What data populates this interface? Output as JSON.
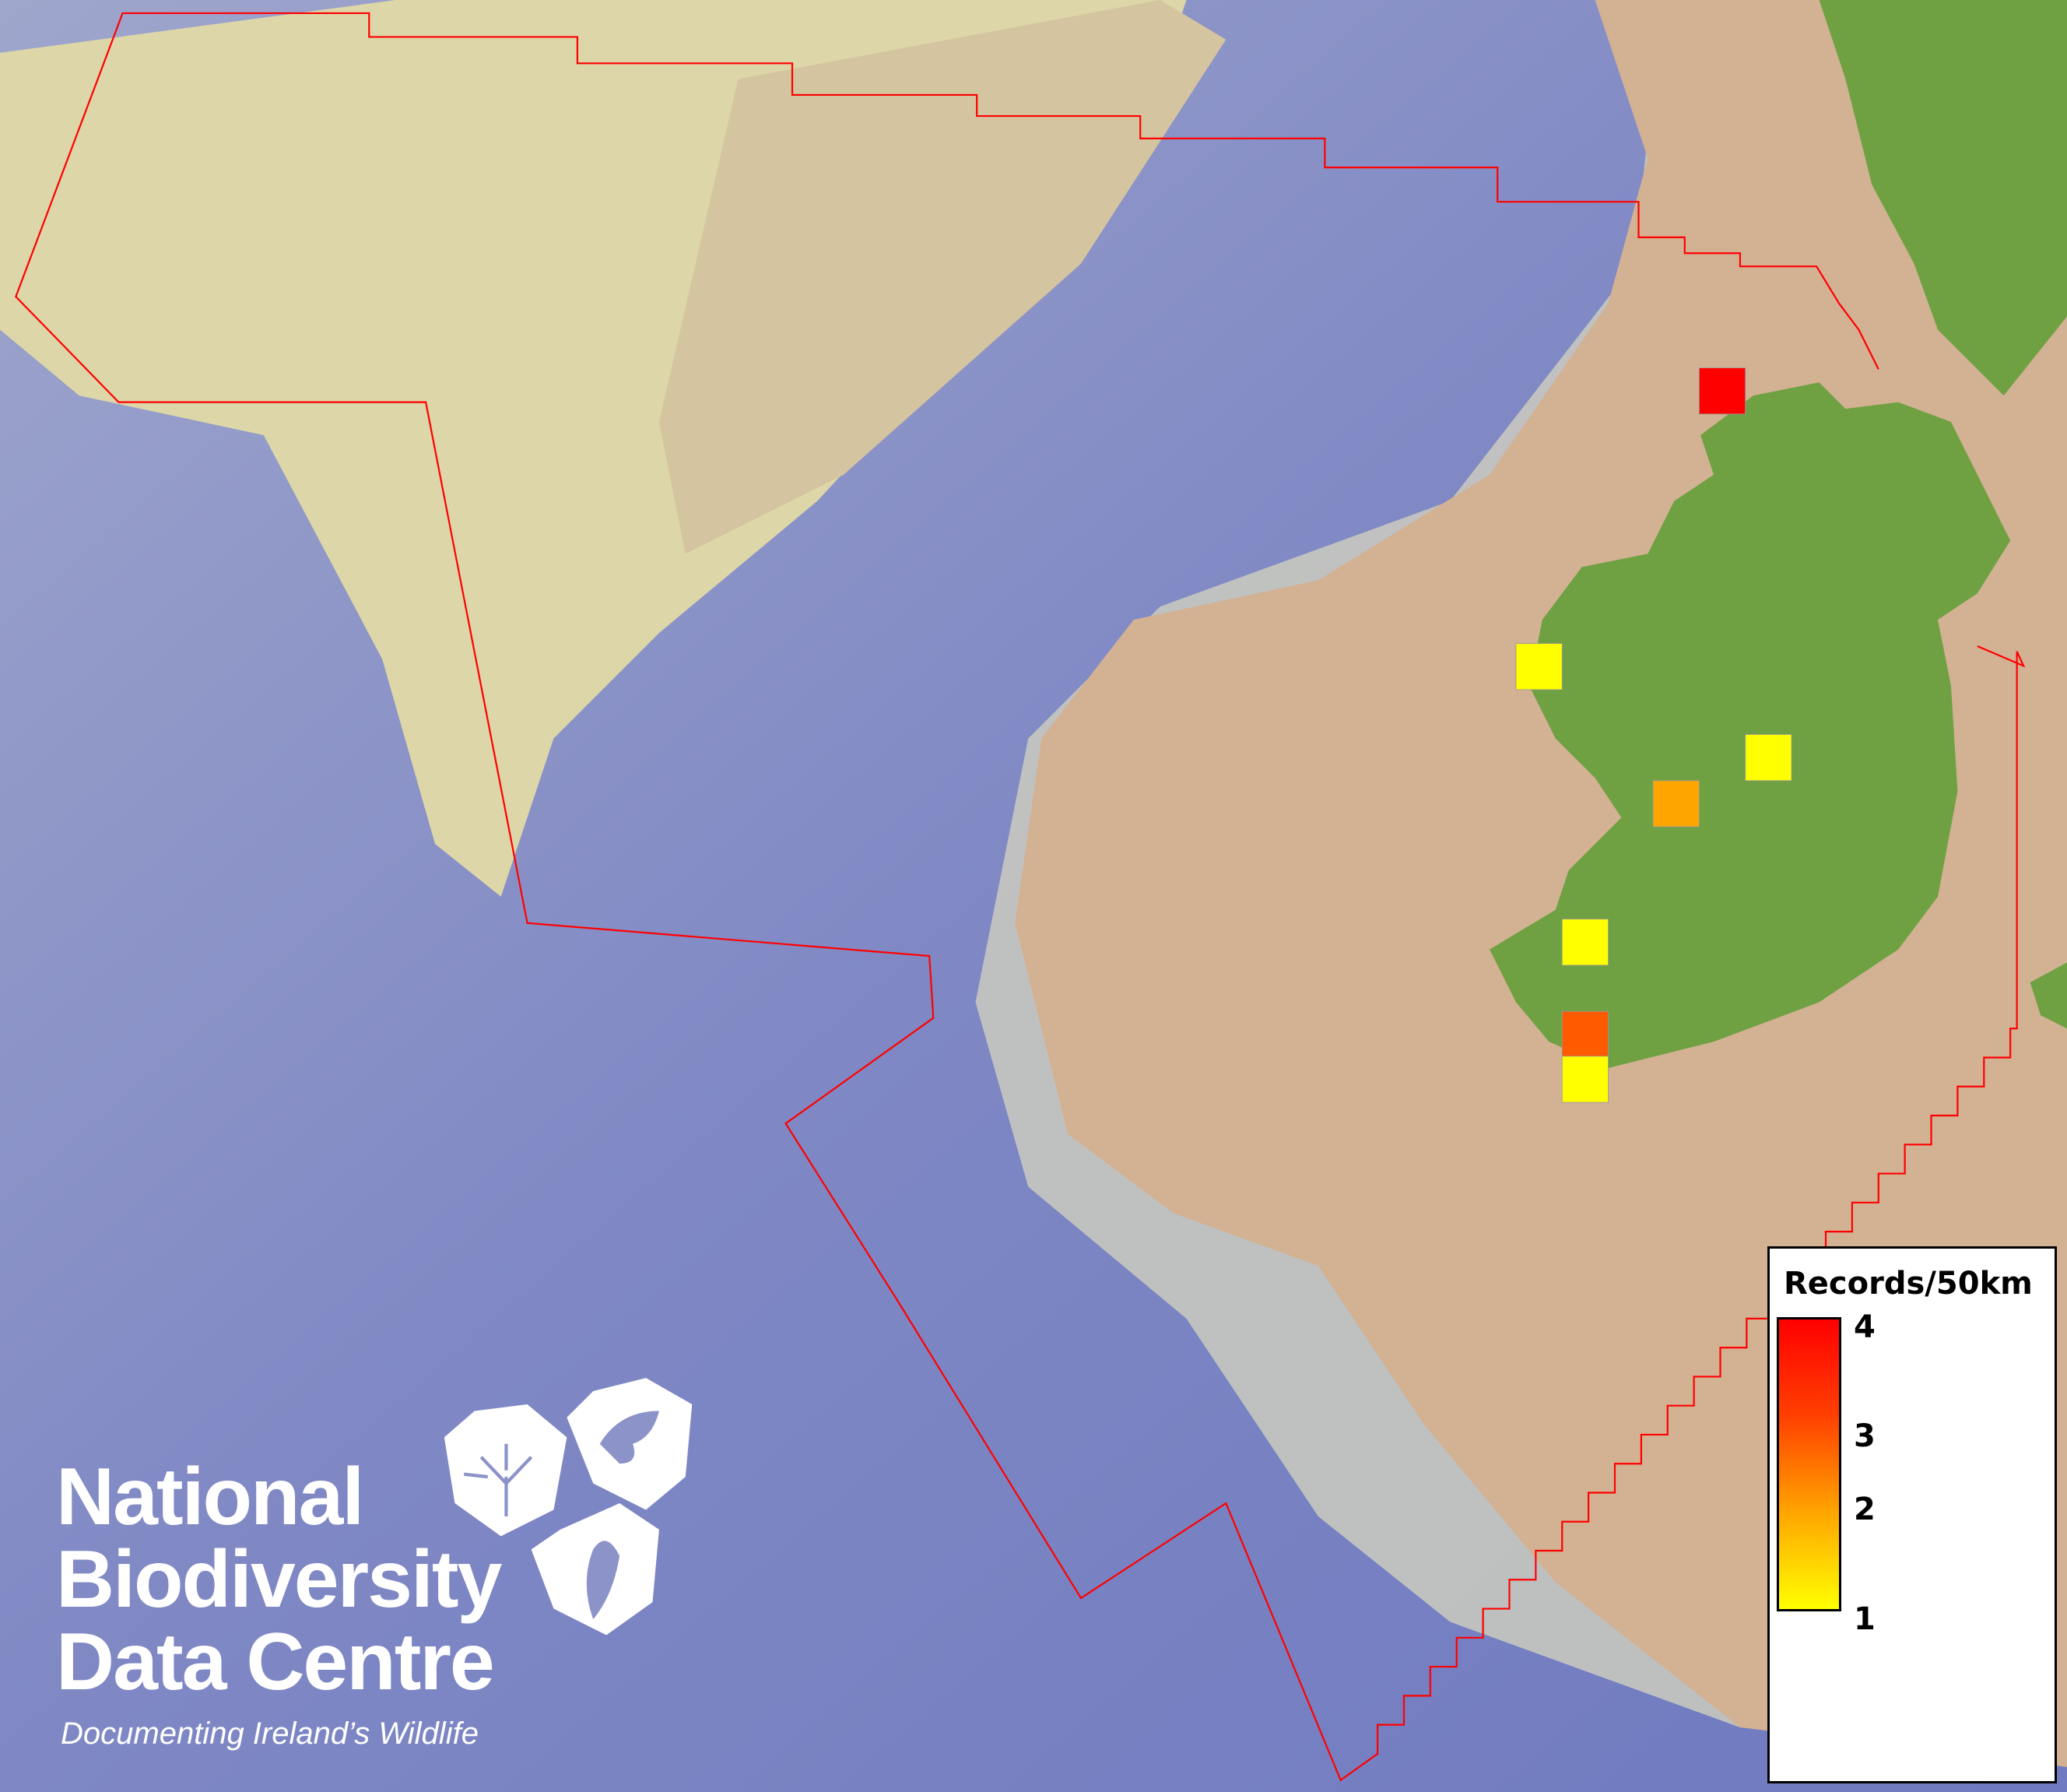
{
  "map": {
    "colors": {
      "deep_ocean": "#7f88c4",
      "slope": "#c9c9bd",
      "shelf_light": "#dcd6a8",
      "shelf": "#d3b193",
      "land": "#6fa143",
      "boundary": "#ff0000"
    },
    "grid_cells": [
      {
        "value": 4,
        "color": "#ff0000"
      },
      {
        "value": 1,
        "color": "#ffff00"
      },
      {
        "value": 1,
        "color": "#ffff00"
      },
      {
        "value": 2,
        "color": "#ffa500"
      },
      {
        "value": 1,
        "color": "#ffff00"
      },
      {
        "value": 3,
        "color": "#ff5a00"
      },
      {
        "value": 1,
        "color": "#ffff00"
      }
    ]
  },
  "legend": {
    "title": "Records/50km",
    "min": 1,
    "max": 4,
    "ticks": [
      "4",
      "3",
      "2",
      "1"
    ],
    "gradient": [
      "#ffff00",
      "#ffa500",
      "#ff4000",
      "#ff0000"
    ]
  },
  "logo": {
    "line1": "National",
    "line2": "Biodiversity",
    "line3": "Data Centre",
    "tagline": "Documenting Ireland’s Wildlife",
    "icons": [
      "plant-icon",
      "butterfly-icon",
      "seahorse-icon"
    ]
  }
}
